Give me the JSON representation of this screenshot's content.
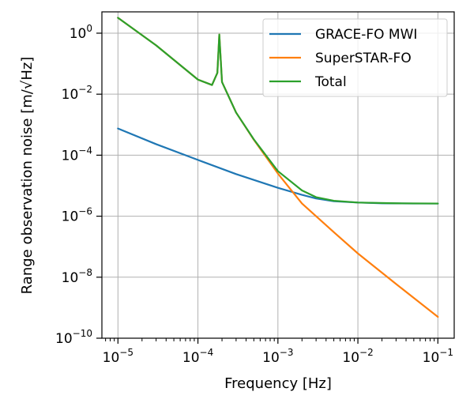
{
  "chart_data": {
    "type": "line",
    "title": "",
    "xlabel": "Frequency [Hz]",
    "ylabel": "Range observation noise [m/√Hz]",
    "xscale": "log",
    "yscale": "log",
    "xlim": [
      6.3e-06,
      0.16
    ],
    "ylim": [
      1e-10,
      5
    ],
    "grid": true,
    "legend_position": "top-right",
    "x_ticks": [
      {
        "mantissa": "10",
        "exp": "−5",
        "value": 1e-05
      },
      {
        "mantissa": "10",
        "exp": "−4",
        "value": 0.0001
      },
      {
        "mantissa": "10",
        "exp": "−3",
        "value": 0.001
      },
      {
        "mantissa": "10",
        "exp": "−2",
        "value": 0.01
      },
      {
        "mantissa": "10",
        "exp": "−1",
        "value": 0.1
      }
    ],
    "y_ticks": [
      {
        "mantissa": "10",
        "exp": "0",
        "value": 1
      },
      {
        "mantissa": "10",
        "exp": "−2",
        "value": 0.01
      },
      {
        "mantissa": "10",
        "exp": "−4",
        "value": 0.0001
      },
      {
        "mantissa": "10",
        "exp": "−6",
        "value": 1e-06
      },
      {
        "mantissa": "10",
        "exp": "−8",
        "value": 1e-08
      },
      {
        "mantissa": "10",
        "exp": "−10",
        "value": 1e-10
      }
    ],
    "series": [
      {
        "name": "GRACE-FO MWI",
        "color": "#1f77b4",
        "x": [
          1e-05,
          3e-05,
          0.0001,
          0.0003,
          0.001,
          0.002,
          0.003,
          0.005,
          0.01,
          0.02,
          0.05,
          0.1
        ],
        "y": [
          0.00075,
          0.00023,
          7e-05,
          2.4e-05,
          8.5e-06,
          5e-06,
          3.8e-06,
          3.1e-06,
          2.8e-06,
          2.65e-06,
          2.6e-06,
          2.6e-06
        ]
      },
      {
        "name": "SuperSTAR-FO",
        "color": "#ff7f0e",
        "x": [
          1e-05,
          3e-05,
          0.0001,
          0.00015,
          0.000175,
          0.000185,
          0.0002,
          0.0003,
          0.0005,
          0.001,
          0.002,
          0.005,
          0.01,
          0.03,
          0.1
        ],
        "y": [
          3.2,
          0.4,
          0.03,
          0.02,
          0.05,
          0.9,
          0.025,
          0.0025,
          0.00032,
          2.5e-05,
          2.6e-06,
          3e-07,
          6e-08,
          6e-09,
          5e-10
        ]
      },
      {
        "name": "Total",
        "color": "#2ca02c",
        "x": [
          1e-05,
          3e-05,
          0.0001,
          0.00015,
          0.000175,
          0.000185,
          0.0002,
          0.0003,
          0.0005,
          0.001,
          0.002,
          0.003,
          0.005,
          0.01,
          0.03,
          0.1
        ],
        "y": [
          3.2,
          0.4,
          0.03,
          0.02,
          0.05,
          0.9,
          0.025,
          0.0025,
          0.00033,
          3e-05,
          7e-06,
          4.2e-06,
          3.2e-06,
          2.8e-06,
          2.65e-06,
          2.6e-06
        ]
      }
    ]
  }
}
